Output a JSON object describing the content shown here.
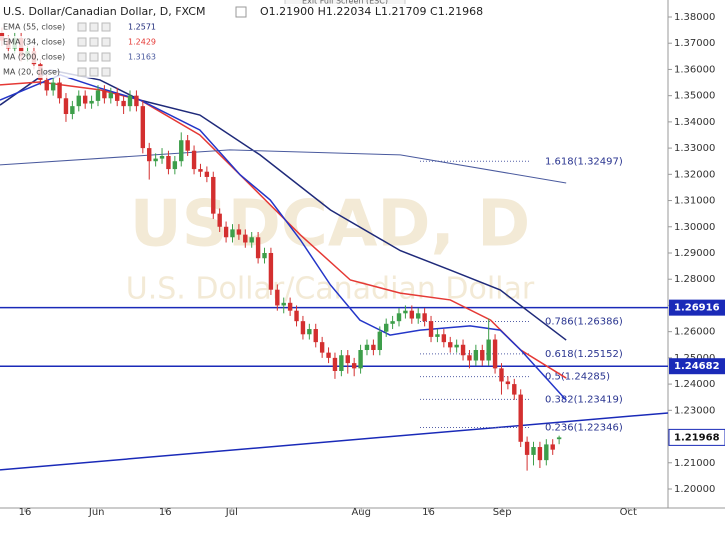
{
  "chart_data": {
    "type": "candlestick",
    "title": "U.S. Dollar/Canadian Dollar, D, FXCM",
    "ohlc_text": "O1.21900 H1.22034 L1.21709 C1.21968",
    "tooltip": "Exit Full Screen (ESC)",
    "watermark": "USDCAD, D",
    "watermark_subtitle": "U.S. Dollar/Canadian Dollar",
    "up_color": "#3d9e4a",
    "down_color": "#d32f2f",
    "x": [
      0,
      1,
      2,
      3,
      4,
      5,
      6,
      7,
      8,
      9,
      10,
      11,
      12,
      13,
      14,
      15,
      16,
      17,
      18,
      19,
      20,
      21,
      22,
      23,
      24,
      25,
      26,
      27,
      28,
      29,
      30,
      31,
      32,
      33,
      34,
      35,
      36,
      37,
      38,
      39,
      40,
      41,
      42,
      43,
      44,
      45,
      46,
      47,
      48,
      49,
      50,
      51,
      52,
      53,
      54,
      55,
      56,
      57,
      58,
      59,
      60,
      61,
      62,
      63,
      64,
      65,
      66,
      67,
      68,
      69,
      70,
      71,
      72,
      73,
      74,
      75,
      76,
      77,
      78,
      79,
      80,
      81,
      82,
      83,
      84,
      85,
      86,
      87
    ],
    "open": [
      1.374,
      1.371,
      1.368,
      1.372,
      1.365,
      1.367,
      1.362,
      1.356,
      1.352,
      1.355,
      1.349,
      1.343,
      1.346,
      1.35,
      1.347,
      1.348,
      1.352,
      1.349,
      1.351,
      1.348,
      1.346,
      1.35,
      1.346,
      1.33,
      1.325,
      1.326,
      1.327,
      1.322,
      1.325,
      1.333,
      1.329,
      1.322,
      1.321,
      1.319,
      1.305,
      1.3,
      1.296,
      1.299,
      1.297,
      1.294,
      1.296,
      1.288,
      1.29,
      1.276,
      1.27,
      1.271,
      1.268,
      1.264,
      1.259,
      1.261,
      1.256,
      1.252,
      1.25,
      1.245,
      1.251,
      1.248,
      1.246,
      1.253,
      1.255,
      1.253,
      1.26,
      1.263,
      1.264,
      1.267,
      1.268,
      1.265,
      1.267,
      1.264,
      1.258,
      1.259,
      1.256,
      1.254,
      1.255,
      1.251,
      1.249,
      1.253,
      1.249,
      1.257,
      1.246,
      1.241,
      1.24,
      1.236,
      1.218,
      1.213,
      1.216,
      1.211,
      1.217,
      1.219
    ],
    "high": [
      1.376,
      1.373,
      1.374,
      1.374,
      1.369,
      1.369,
      1.364,
      1.358,
      1.357,
      1.357,
      1.351,
      1.348,
      1.352,
      1.352,
      1.35,
      1.354,
      1.354,
      1.353,
      1.353,
      1.35,
      1.352,
      1.352,
      1.348,
      1.332,
      1.328,
      1.33,
      1.329,
      1.327,
      1.336,
      1.335,
      1.331,
      1.324,
      1.323,
      1.321,
      1.307,
      1.302,
      1.301,
      1.301,
      1.299,
      1.298,
      1.298,
      1.292,
      1.292,
      1.278,
      1.273,
      1.273,
      1.27,
      1.266,
      1.263,
      1.263,
      1.258,
      1.254,
      1.252,
      1.253,
      1.253,
      1.25,
      1.255,
      1.257,
      1.257,
      1.262,
      1.265,
      1.266,
      1.269,
      1.27,
      1.27,
      1.269,
      1.269,
      1.266,
      1.261,
      1.261,
      1.258,
      1.257,
      1.257,
      1.253,
      1.255,
      1.255,
      1.265,
      1.259,
      1.248,
      1.243,
      1.242,
      1.238,
      1.22,
      1.218,
      1.218,
      1.219,
      1.219,
      1.22034
    ],
    "low": [
      1.369,
      1.366,
      1.366,
      1.363,
      1.363,
      1.36,
      1.354,
      1.35,
      1.35,
      1.347,
      1.34,
      1.341,
      1.344,
      1.345,
      1.345,
      1.346,
      1.347,
      1.347,
      1.346,
      1.343,
      1.344,
      1.344,
      1.328,
      1.318,
      1.323,
      1.324,
      1.32,
      1.32,
      1.323,
      1.327,
      1.32,
      1.319,
      1.317,
      1.303,
      1.298,
      1.294,
      1.294,
      1.295,
      1.292,
      1.292,
      1.286,
      1.286,
      1.274,
      1.268,
      1.267,
      1.266,
      1.262,
      1.257,
      1.257,
      1.254,
      1.25,
      1.248,
      1.242,
      1.243,
      1.244,
      1.243,
      1.244,
      1.251,
      1.251,
      1.251,
      1.258,
      1.261,
      1.262,
      1.265,
      1.263,
      1.263,
      1.262,
      1.256,
      1.256,
      1.254,
      1.252,
      1.252,
      1.249,
      1.246,
      1.247,
      1.247,
      1.247,
      1.244,
      1.236,
      1.238,
      1.234,
      1.216,
      1.207,
      1.209,
      1.208,
      1.209,
      1.213,
      1.21709
    ],
    "close": [
      1.371,
      1.368,
      1.372,
      1.365,
      1.367,
      1.362,
      1.356,
      1.352,
      1.355,
      1.349,
      1.343,
      1.346,
      1.35,
      1.347,
      1.348,
      1.352,
      1.349,
      1.351,
      1.348,
      1.346,
      1.35,
      1.346,
      1.33,
      1.325,
      1.326,
      1.327,
      1.322,
      1.325,
      1.333,
      1.329,
      1.322,
      1.321,
      1.319,
      1.305,
      1.3,
      1.296,
      1.299,
      1.297,
      1.294,
      1.296,
      1.288,
      1.29,
      1.276,
      1.27,
      1.271,
      1.268,
      1.264,
      1.259,
      1.261,
      1.256,
      1.252,
      1.25,
      1.245,
      1.251,
      1.248,
      1.246,
      1.253,
      1.255,
      1.253,
      1.26,
      1.263,
      1.264,
      1.267,
      1.268,
      1.265,
      1.267,
      1.264,
      1.258,
      1.259,
      1.256,
      1.254,
      1.255,
      1.251,
      1.249,
      1.253,
      1.249,
      1.257,
      1.246,
      1.241,
      1.24,
      1.236,
      1.218,
      1.213,
      1.216,
      1.211,
      1.217,
      1.215,
      1.21968
    ],
    "series": [
      {
        "name": "EMA (55, close)",
        "last_label": "1.2571",
        "color": "#1f2a7a",
        "x": [
          -0.3,
          7.5,
          15.3,
          21.6,
          30.9,
          40.3,
          51.3,
          62.2,
          70,
          77.8,
          88.1
        ],
        "values": [
          1.3464,
          1.3598,
          1.356,
          1.3483,
          1.3426,
          1.3274,
          1.3064,
          1.2909,
          1.2835,
          1.2759,
          1.2568
        ]
      },
      {
        "name": "EMA (34, close)",
        "last_label": "1.2429",
        "color": "#e53935",
        "x": [
          -0.3,
          5.9,
          15.3,
          21.6,
          30.9,
          38.8,
          46.6,
          54.4,
          62.2,
          70,
          76.3,
          81,
          88.1
        ],
        "values": [
          1.3541,
          1.3552,
          1.3522,
          1.3483,
          1.335,
          1.3159,
          1.2969,
          1.2797,
          1.2747,
          1.2721,
          1.2644,
          1.253,
          1.2423
        ]
      },
      {
        "name": "MA (200, close)",
        "last_label": "1.3163",
        "color": "#4a5a9e",
        "x": [
          -0.3,
          35.6,
          62.2,
          88.1
        ],
        "values": [
          1.3236,
          1.3293,
          1.3274,
          1.3167
        ]
      },
      {
        "name": "MA (20, close)",
        "color": "#2436c8",
        "x": [
          -0.3,
          9.1,
          15.3,
          21.6,
          30.9,
          37.2,
          41.9,
          46.6,
          51.3,
          55.9,
          60.6,
          65.3,
          73.1,
          77.8,
          81,
          88.1
        ],
        "values": [
          1.3483,
          1.3579,
          1.3529,
          1.3483,
          1.3369,
          1.3198,
          1.3102,
          1.295,
          1.2778,
          1.2644,
          1.2587,
          1.2606,
          1.2622,
          1.2606,
          1.253,
          1.2339
        ]
      }
    ],
    "levels": [
      {
        "value": 1.26916,
        "label": "1.26916"
      },
      {
        "value": 1.24682,
        "label": "1.24682"
      }
    ],
    "last_price": {
      "value": 1.21968,
      "label": "1.21968"
    },
    "fib_levels": [
      {
        "value": 1.32497,
        "label": "1.618(1.32497)"
      },
      {
        "value": 1.26386,
        "label": "0.786(1.26386)"
      },
      {
        "value": 1.25152,
        "label": "0.618(1.25152)"
      },
      {
        "value": 1.24285,
        "label": "0.5(1.24285)"
      },
      {
        "value": 1.23419,
        "label": "0.382(1.23419)"
      },
      {
        "value": 1.22346,
        "label": "0.236(1.22346)"
      }
    ],
    "trendline": {
      "x": [
        -0.3,
        104
      ],
      "values": [
        1.2073,
        1.229
      ]
    },
    "xlim": [
      -0.3,
      104
    ],
    "xticks": [
      {
        "value": 3.6,
        "label": "16"
      },
      {
        "value": 14.8,
        "label": "Jun"
      },
      {
        "value": 25.5,
        "label": "16"
      },
      {
        "value": 35.9,
        "label": "Jul"
      },
      {
        "value": 56.1,
        "label": "Aug"
      },
      {
        "value": 66.6,
        "label": "16"
      },
      {
        "value": 78.1,
        "label": "Sep"
      },
      {
        "value": 97.8,
        "label": "Oct"
      }
    ],
    "ylim": [
      1.1958,
      1.38648
    ],
    "yticks": [
      {
        "value": 1.2,
        "label": "1.20000"
      },
      {
        "value": 1.21,
        "label": "1.21000"
      },
      {
        "value": 1.22,
        "label": "1.22000"
      },
      {
        "value": 1.23,
        "label": "1.23000"
      },
      {
        "value": 1.24,
        "label": "1.24000"
      },
      {
        "value": 1.25,
        "label": "1.25000"
      },
      {
        "value": 1.26,
        "label": "1.26000"
      },
      {
        "value": 1.27,
        "label": "1.27000"
      },
      {
        "value": 1.28,
        "label": "1.28000"
      },
      {
        "value": 1.29,
        "label": "1.29000"
      },
      {
        "value": 1.3,
        "label": "1.30000"
      },
      {
        "value": 1.31,
        "label": "1.31000"
      },
      {
        "value": 1.32,
        "label": "1.32000"
      },
      {
        "value": 1.33,
        "label": "1.33000"
      },
      {
        "value": 1.34,
        "label": "1.34000"
      },
      {
        "value": 1.35,
        "label": "1.35000"
      },
      {
        "value": 1.36,
        "label": "1.36000"
      },
      {
        "value": 1.37,
        "label": "1.37000"
      },
      {
        "value": 1.38,
        "label": "1.38000"
      }
    ]
  }
}
